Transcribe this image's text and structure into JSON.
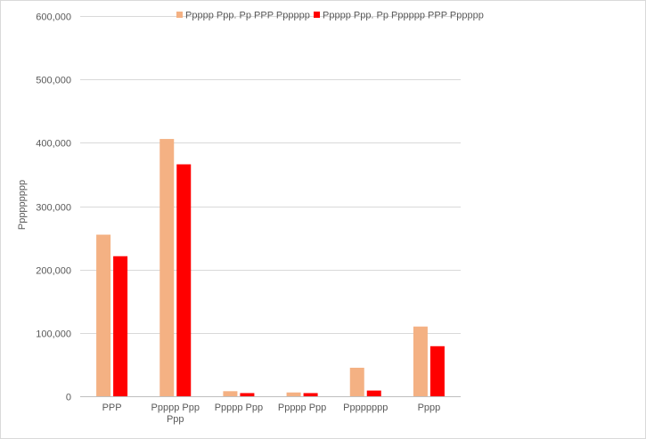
{
  "chart_data": {
    "type": "bar",
    "title": "",
    "xlabel": "",
    "ylabel": "Ppppppppp",
    "ylim": [
      0,
      600000
    ],
    "yticks": [
      0,
      100000,
      200000,
      300000,
      400000,
      500000,
      600000
    ],
    "ytick_labels": [
      "0",
      "100,000",
      "200,000",
      "300,000",
      "400,000",
      "500,000",
      "600,000"
    ],
    "grid": true,
    "legend_position": "top",
    "categories": [
      [
        "PPP"
      ],
      [
        "Ppppp Ppp",
        "Ppp"
      ],
      [
        "Ppppp Ppp"
      ],
      [
        "Ppppp Ppp"
      ],
      [
        "Pppppppp"
      ],
      [
        "Pppp"
      ]
    ],
    "series": [
      {
        "name": "Ppppp Ppp. Pp PPP Pppppp",
        "color": "#f4b183",
        "values": [
          255000,
          406000,
          8000,
          6000,
          45000,
          110000
        ]
      },
      {
        "name": "Ppppp Ppp. Pp Pppppp PPP Pppppp",
        "color": "#ff0000",
        "values": [
          221000,
          366000,
          5000,
          5000,
          9000,
          79000
        ]
      }
    ]
  }
}
